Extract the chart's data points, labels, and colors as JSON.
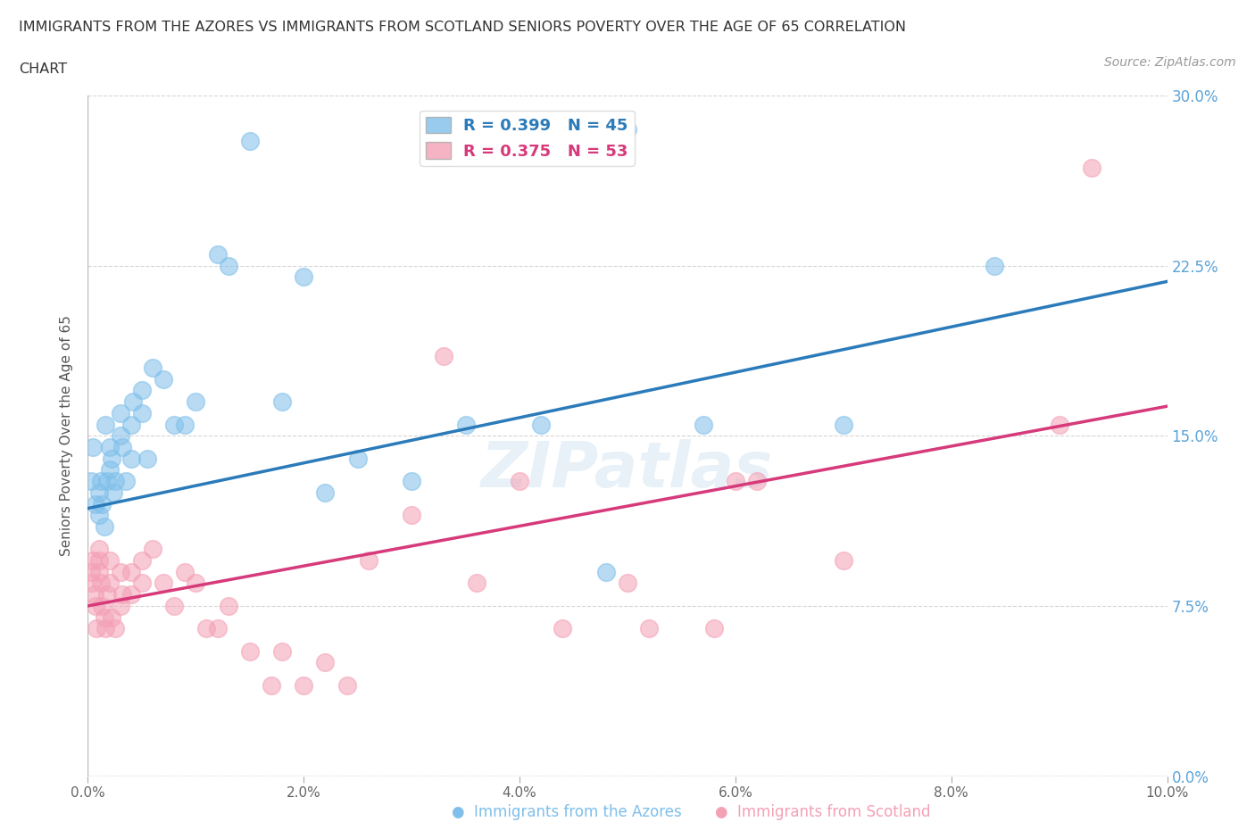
{
  "title_line1": "IMMIGRANTS FROM THE AZORES VS IMMIGRANTS FROM SCOTLAND SENIORS POVERTY OVER THE AGE OF 65 CORRELATION",
  "title_line2": "CHART",
  "source_text": "Source: ZipAtlas.com",
  "azores_R": 0.399,
  "azores_N": 45,
  "scotland_R": 0.375,
  "scotland_N": 53,
  "azores_color": "#7fbfea",
  "scotland_color": "#f4a0b5",
  "azores_line_color": "#2b7bba",
  "scotland_line_color": "#d63a7a",
  "watermark": "ZIPatlas",
  "ylabel": "Seniors Poverty Over the Age of 65",
  "xlim": [
    0.0,
    0.1
  ],
  "ylim": [
    0.0,
    0.3
  ],
  "xticks": [
    0.0,
    0.02,
    0.04,
    0.06,
    0.08,
    0.1
  ],
  "yticks": [
    0.0,
    0.075,
    0.15,
    0.225,
    0.3
  ],
  "azores_x": [
    0.0003,
    0.0005,
    0.0007,
    0.001,
    0.001,
    0.0012,
    0.0013,
    0.0015,
    0.0016,
    0.0018,
    0.002,
    0.002,
    0.0022,
    0.0024,
    0.0025,
    0.003,
    0.003,
    0.0032,
    0.0035,
    0.004,
    0.004,
    0.0042,
    0.005,
    0.005,
    0.0055,
    0.006,
    0.007,
    0.008,
    0.009,
    0.01,
    0.012,
    0.013,
    0.015,
    0.018,
    0.02,
    0.022,
    0.025,
    0.03,
    0.035,
    0.042,
    0.05,
    0.057,
    0.07,
    0.084,
    0.048
  ],
  "azores_y": [
    0.13,
    0.145,
    0.12,
    0.125,
    0.115,
    0.13,
    0.12,
    0.11,
    0.155,
    0.13,
    0.145,
    0.135,
    0.14,
    0.125,
    0.13,
    0.15,
    0.16,
    0.145,
    0.13,
    0.155,
    0.14,
    0.165,
    0.16,
    0.17,
    0.14,
    0.18,
    0.175,
    0.155,
    0.155,
    0.165,
    0.23,
    0.225,
    0.28,
    0.165,
    0.22,
    0.125,
    0.14,
    0.13,
    0.155,
    0.155,
    0.285,
    0.155,
    0.155,
    0.225,
    0.09
  ],
  "scotland_x": [
    0.0003,
    0.0004,
    0.0005,
    0.0006,
    0.0007,
    0.0008,
    0.001,
    0.001,
    0.001,
    0.0012,
    0.0013,
    0.0015,
    0.0016,
    0.0018,
    0.002,
    0.002,
    0.0022,
    0.0025,
    0.003,
    0.003,
    0.0032,
    0.004,
    0.004,
    0.005,
    0.005,
    0.006,
    0.007,
    0.008,
    0.009,
    0.01,
    0.011,
    0.012,
    0.013,
    0.015,
    0.017,
    0.018,
    0.02,
    0.022,
    0.024,
    0.026,
    0.03,
    0.033,
    0.036,
    0.04,
    0.044,
    0.05,
    0.052,
    0.058,
    0.062,
    0.07,
    0.09,
    0.093,
    0.06
  ],
  "scotland_y": [
    0.09,
    0.085,
    0.095,
    0.08,
    0.075,
    0.065,
    0.1,
    0.09,
    0.095,
    0.085,
    0.075,
    0.07,
    0.065,
    0.08,
    0.095,
    0.085,
    0.07,
    0.065,
    0.09,
    0.075,
    0.08,
    0.09,
    0.08,
    0.095,
    0.085,
    0.1,
    0.085,
    0.075,
    0.09,
    0.085,
    0.065,
    0.065,
    0.075,
    0.055,
    0.04,
    0.055,
    0.04,
    0.05,
    0.04,
    0.095,
    0.115,
    0.185,
    0.085,
    0.13,
    0.065,
    0.085,
    0.065,
    0.065,
    0.13,
    0.095,
    0.155,
    0.268,
    0.13
  ],
  "azores_trend_x0": 0.0,
  "azores_trend_y0": 0.118,
  "azores_trend_x1": 0.1,
  "azores_trend_y1": 0.218,
  "scotland_trend_x0": 0.0,
  "scotland_trend_y0": 0.075,
  "scotland_trend_x1": 0.1,
  "scotland_trend_y1": 0.163
}
